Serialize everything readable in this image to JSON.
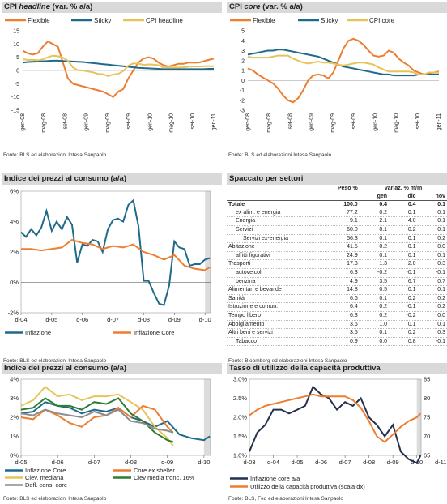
{
  "colors": {
    "orange": "#ED7D31",
    "blue": "#1F6A8B",
    "gold": "#E6C45A",
    "grey": "#8C8C8C",
    "green": "#2E7D32",
    "navy": "#25304F",
    "shade": "#DCDCDC",
    "titlebg": "#D9D9D9"
  },
  "panels": {
    "p1": {
      "title_pre": "CPI ",
      "title_em": "headline",
      "title_post": " (var. % a/a)",
      "source": "Fonte: BLS ed elaborazioni Intesa Sanpaolo"
    },
    "p2": {
      "title_pre": "CPI ",
      "title_em": "core",
      "title_post": " (var. % a/a)",
      "source": "Fonte: BLS ed elaborazioni Intesa Sanpaolo"
    },
    "p3": {
      "title": "Indice dei prezzi al consumo (a/a)",
      "source": "Fonte: BLS ed elaborazioni Intesa Sanpaolo"
    },
    "p4": {
      "title": "Spaccato per settori",
      "source": "Fonte: Bloomberg ed elaborazioni Intesa Sanpaolo"
    },
    "p5": {
      "title": "Indice dei prezzi al consumo (a/a)",
      "source": "Fonte: BLS ed elaborazioni Intesa Sanpaolo"
    },
    "p6": {
      "title": "Tasso di utilizzo della capacità produttiva",
      "source": "Fonte: BLS, Fed ed elaborazioni Intesa Sanpaolo"
    }
  },
  "table": {
    "headers": {
      "peso": "Peso %",
      "variaz": "Variaz. % m/m",
      "gen": "gen",
      "dic": "dic",
      "nov": "nov"
    },
    "rows": [
      {
        "label": "Totale",
        "peso": "100.0",
        "gen": "0.4",
        "dic": "0.4",
        "nov": "0.1",
        "indent": 0,
        "bold": true
      },
      {
        "label": "ex alim. e energia",
        "peso": "77.2",
        "gen": "0.2",
        "dic": "0.1",
        "nov": "0.1",
        "indent": 1
      },
      {
        "label": "Energia",
        "peso": "9.1",
        "gen": "2.1",
        "dic": "4.0",
        "nov": "0.1",
        "indent": 1
      },
      {
        "label": "Servizi",
        "peso": "60.0",
        "gen": "0.1",
        "dic": "0.2",
        "nov": "0.1",
        "indent": 1
      },
      {
        "label": "Servizi ex-energia",
        "peso": "56.3",
        "gen": "0.1",
        "dic": "0.1",
        "nov": "0.2",
        "indent": 2
      },
      {
        "label": "Abitazione",
        "peso": "41.5",
        "gen": "0.2",
        "dic": "-0.1",
        "nov": "0.0",
        "indent": 0
      },
      {
        "label": "affitti figurativi",
        "peso": "24.9",
        "gen": "0.1",
        "dic": "0.1",
        "nov": "0.1",
        "indent": 1
      },
      {
        "label": "Trasporti",
        "peso": "17.3",
        "gen": "1.3",
        "dic": "2.0",
        "nov": "0.3",
        "indent": 0
      },
      {
        "label": "autoveicoli",
        "peso": "6.3",
        "gen": "-0.2",
        "dic": "-0.1",
        "nov": "-0.1",
        "indent": 1
      },
      {
        "label": "benzina",
        "peso": "4.9",
        "gen": "3.5",
        "dic": "6.7",
        "nov": "0.7",
        "indent": 1
      },
      {
        "label": "Alimentari e bevande",
        "peso": "14.8",
        "gen": "0.5",
        "dic": "0.1",
        "nov": "0.1",
        "indent": 0
      },
      {
        "label": "Sanità",
        "peso": "6.6",
        "gen": "0.1",
        "dic": "0.2",
        "nov": "0.2",
        "indent": 0
      },
      {
        "label": "Istruzione e comun.",
        "peso": "6.4",
        "gen": "0.2",
        "dic": "-0.1",
        "nov": "0.2",
        "indent": 0
      },
      {
        "label": "Tempo libero",
        "peso": "6.3",
        "gen": "0.2",
        "dic": "-0.2",
        "nov": "0.0",
        "indent": 0
      },
      {
        "label": "Abbigliamento",
        "peso": "3.6",
        "gen": "1.0",
        "dic": "0.1",
        "nov": "0.1",
        "indent": 0
      },
      {
        "label": "Altri beni e servizi",
        "peso": "3.5",
        "gen": "0.1",
        "dic": "0.2",
        "nov": "0.3",
        "indent": 0
      },
      {
        "label": "Tabacco",
        "peso": "0.9",
        "gen": "0.0",
        "dic": "0.8",
        "nov": "-0.1",
        "indent": 1
      }
    ]
  },
  "chart_data": [
    {
      "id": "p1",
      "type": "line",
      "ylim": [
        -15,
        15
      ],
      "yticks": [
        -15,
        -10,
        -5,
        0,
        5,
        10,
        15
      ],
      "x_labels": [
        "gen-08",
        "mag-08",
        "set-08",
        "gen-09",
        "mag-09",
        "set-09",
        "gen-10",
        "mag-10",
        "set-10",
        "gen-11"
      ],
      "legend_position": "top",
      "series": [
        {
          "name": "Flexible",
          "color": "orange",
          "values": [
            7.5,
            6.5,
            6,
            6.5,
            9,
            11,
            10,
            9,
            3,
            -3,
            -5,
            -5.5,
            -6,
            -6.5,
            -7,
            -7.5,
            -8,
            -9,
            -10,
            -8,
            -7,
            -3,
            0,
            3,
            4.5,
            5,
            4.5,
            3,
            2,
            1.5,
            2,
            2.5,
            2.5,
            3,
            3,
            3,
            3.5,
            4,
            4.5
          ]
        },
        {
          "name": "Sticky",
          "color": "blue",
          "values": [
            3,
            3.2,
            3.3,
            3.4,
            3.5,
            3.6,
            3.7,
            3.7,
            3.6,
            3.5,
            3.4,
            3.3,
            3.2,
            3,
            2.8,
            2.6,
            2.4,
            2.2,
            2,
            1.8,
            1.6,
            1.4,
            1.2,
            1,
            0.9,
            0.8,
            0.7,
            0.6,
            0.5,
            0.5,
            0.5,
            0.5,
            0.5,
            0.5,
            0.5,
            0.5,
            0.5,
            0.6,
            0.6
          ]
        },
        {
          "name": "CPI headline",
          "color": "gold",
          "values": [
            4.3,
            4,
            4,
            3.9,
            4.2,
            5,
            5.6,
            5.4,
            4.9,
            3.7,
            1.1,
            0.1,
            0,
            -0.4,
            -0.7,
            -1.3,
            -1.4,
            -2.1,
            -1.5,
            -1.3,
            -0.2,
            1.8,
            2.7,
            2.6,
            2.1,
            2.3,
            2.2,
            2,
            1.1,
            1.2,
            1.1,
            1.1,
            1.2,
            1.4,
            1.5,
            1.5,
            1.6,
            1.6,
            1.6
          ]
        }
      ]
    },
    {
      "id": "p2",
      "type": "line",
      "ylim": [
        -3,
        5
      ],
      "yticks": [
        -3,
        -2,
        -1,
        0,
        1,
        2,
        3,
        4,
        5
      ],
      "x_labels": [
        "gen-08",
        "mag-08",
        "set-08",
        "gen-09",
        "mag-09",
        "set-09",
        "gen-10",
        "mag-10",
        "set-10",
        "gen-11"
      ],
      "legend_position": "top",
      "series": [
        {
          "name": "Flexible",
          "color": "orange",
          "values": [
            1.2,
            1,
            0.6,
            0.3,
            0,
            -0.3,
            -0.8,
            -1.5,
            -2,
            -2.2,
            -1.8,
            -1,
            0,
            0.5,
            0.6,
            0.5,
            0.2,
            0.8,
            2,
            3.2,
            4,
            4.2,
            4,
            3.6,
            3,
            2.5,
            2.4,
            2.5,
            3,
            2.8,
            2.2,
            1.8,
            1.5,
            1,
            0.8,
            0.6,
            0.7,
            0.8,
            0.9
          ]
        },
        {
          "name": "Sticky",
          "color": "blue",
          "values": [
            2.6,
            2.7,
            2.8,
            2.9,
            3,
            3,
            3.1,
            3.1,
            3,
            2.9,
            2.8,
            2.7,
            2.6,
            2.5,
            2.4,
            2.2,
            2,
            1.8,
            1.6,
            1.4,
            1.3,
            1.2,
            1.1,
            1,
            0.9,
            0.8,
            0.7,
            0.6,
            0.6,
            0.5,
            0.5,
            0.5,
            0.5,
            0.5,
            0.6,
            0.6,
            0.6,
            0.6,
            0.6
          ]
        },
        {
          "name": "CPI core",
          "color": "gold",
          "values": [
            2.4,
            2.3,
            2.3,
            2.3,
            2.3,
            2.4,
            2.5,
            2.5,
            2.5,
            2.2,
            2,
            1.8,
            1.7,
            1.8,
            1.9,
            1.8,
            1.8,
            1.7,
            1.6,
            1.5,
            1.6,
            1.7,
            1.8,
            1.8,
            1.7,
            1.6,
            1.3,
            1.1,
            0.9,
            0.9,
            0.9,
            0.9,
            0.9,
            0.8,
            0.6,
            0.6,
            0.8,
            0.8,
            0.8
          ]
        }
      ]
    },
    {
      "id": "p3",
      "type": "line",
      "ylim": [
        -2,
        6
      ],
      "yticks": [
        "-2%",
        "0%",
        "2%",
        "4%",
        "6%"
      ],
      "ytick_values": [
        -2,
        0,
        2,
        4,
        6
      ],
      "x_labels": [
        "d-04",
        "d-05",
        "d-06",
        "d-07",
        "d-08",
        "d-09",
        "d-10",
        "d-11"
      ],
      "x_range": [
        2004.92,
        2011.1
      ],
      "shaded_from": 2010.92,
      "legend_position": "bottom",
      "series": [
        {
          "name": "Inflazione",
          "color": "blue",
          "x": [
            2004.92,
            2005.08,
            2005.25,
            2005.42,
            2005.58,
            2005.75,
            2005.92,
            2006.08,
            2006.25,
            2006.42,
            2006.58,
            2006.75,
            2006.92,
            2007.08,
            2007.25,
            2007.42,
            2007.58,
            2007.75,
            2007.92,
            2008.08,
            2008.25,
            2008.42,
            2008.58,
            2008.75,
            2008.92,
            2009.08,
            2009.25,
            2009.42,
            2009.58,
            2009.75,
            2009.92,
            2010.08,
            2010.25,
            2010.42,
            2010.58,
            2010.75,
            2010.92,
            2011.08
          ],
          "values": [
            3.3,
            3,
            3.5,
            3.1,
            3.6,
            4.7,
            3.4,
            4,
            3.5,
            4.3,
            3.8,
            1.3,
            2.5,
            2.4,
            2.8,
            2.7,
            2,
            3.5,
            4.1,
            4.2,
            4,
            5.1,
            5.4,
            3.7,
            0.1,
            0.1,
            -0.7,
            -1.4,
            -1.5,
            -0.2,
            2.7,
            2.3,
            2.2,
            1.1,
            1.2,
            1.2,
            1.5,
            1.6
          ]
        },
        {
          "name": "Inflazione Core",
          "color": "orange",
          "x": [
            2004.92,
            2005.25,
            2005.58,
            2005.92,
            2006.25,
            2006.58,
            2006.92,
            2007.25,
            2007.58,
            2007.92,
            2008.25,
            2008.58,
            2008.92,
            2009.25,
            2009.58,
            2009.92,
            2010.25,
            2010.58,
            2010.92,
            2011.08
          ],
          "values": [
            2.2,
            2.2,
            2.1,
            2.2,
            2.3,
            2.8,
            2.6,
            2.5,
            2.2,
            2.4,
            2.3,
            2.5,
            2,
            1.8,
            1.5,
            1.8,
            1.1,
            0.9,
            0.8,
            1
          ]
        }
      ]
    },
    {
      "id": "p5",
      "type": "line",
      "ylim": [
        0,
        4
      ],
      "yticks": [
        "0%",
        "1%",
        "2%",
        "3%",
        "4%"
      ],
      "ytick_values": [
        0,
        1,
        2,
        3,
        4
      ],
      "x_labels": [
        "d-05",
        "d-06",
        "d-07",
        "d-08",
        "d-09",
        "d-10",
        "d-11"
      ],
      "x_range": [
        2005.92,
        2011.1
      ],
      "shaded_from": 2010.92,
      "legend_position": "bottom",
      "series": [
        {
          "name": "Inflazione Core",
          "color": "blue",
          "x": [
            2005.92,
            2006.25,
            2006.58,
            2006.92,
            2007.25,
            2007.58,
            2007.92,
            2008.25,
            2008.58,
            2008.92,
            2009.25,
            2009.58,
            2009.92,
            2010.25,
            2010.58,
            2010.92,
            2011.08
          ],
          "values": [
            2.2,
            2.3,
            2.8,
            2.6,
            2.5,
            2.2,
            2.4,
            2.3,
            2.5,
            2,
            1.8,
            1.5,
            1.8,
            1.1,
            0.9,
            0.8,
            1
          ]
        },
        {
          "name": "Core ex shelter",
          "color": "orange",
          "x": [
            2005.92,
            2006.25,
            2006.58,
            2006.92,
            2007.25,
            2007.58,
            2007.92,
            2008.25,
            2008.58,
            2008.92,
            2009.25,
            2009.58,
            2009.92,
            2010.08
          ],
          "values": [
            2,
            1.9,
            2.4,
            2.1,
            1.7,
            1.5,
            2,
            2.1,
            2.5,
            2,
            2.6,
            2.4,
            1.5,
            1.2
          ]
        },
        {
          "name": "Clev. mediana",
          "color": "gold",
          "x": [
            2005.92,
            2006.25,
            2006.58,
            2006.92,
            2007.25,
            2007.58,
            2007.92,
            2008.25,
            2008.58,
            2008.92,
            2009.25,
            2009.58,
            2009.92,
            2010.08
          ],
          "values": [
            2.6,
            2.9,
            3.6,
            3.1,
            3.2,
            2.9,
            3.1,
            3.1,
            3.2,
            2.8,
            2.4,
            1.5,
            0.9,
            0.5
          ]
        },
        {
          "name": "Clev media tronc. 16%",
          "color": "green",
          "x": [
            2005.92,
            2006.25,
            2006.58,
            2006.92,
            2007.25,
            2007.58,
            2007.92,
            2008.25,
            2008.58,
            2008.92,
            2009.25,
            2009.58,
            2009.92,
            2010.08
          ],
          "values": [
            2.4,
            2.5,
            3,
            2.6,
            2.6,
            2.4,
            2.8,
            2.7,
            3,
            2.2,
            1.8,
            1.2,
            0.8,
            0.7
          ]
        },
        {
          "name": "Defl. cons. core",
          "color": "grey",
          "x": [
            2005.92,
            2006.25,
            2006.58,
            2006.92,
            2007.25,
            2007.58,
            2007.92,
            2008.25,
            2008.58,
            2008.92,
            2009.25,
            2009.58,
            2009.92,
            2010.08
          ],
          "values": [
            2.2,
            2.1,
            2.4,
            2.2,
            2.1,
            2,
            2.3,
            2.1,
            2.4,
            1.8,
            1.7,
            1.4,
            1.3,
            1.2
          ]
        }
      ]
    },
    {
      "id": "p6",
      "type": "line",
      "ylim": [
        1,
        3
      ],
      "yticks": [
        "1.0%",
        "1.5%",
        "2.0%",
        "2.5%",
        "3.0%"
      ],
      "ytick_values": [
        1,
        1.5,
        2,
        2.5,
        3
      ],
      "y2lim": [
        65,
        85
      ],
      "y2ticks": [
        65,
        70,
        75,
        80,
        85
      ],
      "x_labels": [
        "d-03",
        "d-04",
        "d-05",
        "d-06",
        "d-07",
        "d-08",
        "d-09",
        "d-10",
        "d-11"
      ],
      "x_range": [
        2003.92,
        2011.1
      ],
      "shaded_from": 2010.92,
      "legend_position": "bottom",
      "series": [
        {
          "name": "Inflazione core a/a",
          "color": "navy",
          "axis": "left",
          "x": [
            2003.92,
            2004.25,
            2004.58,
            2004.92,
            2005.25,
            2005.58,
            2005.92,
            2006.25,
            2006.58,
            2006.92,
            2007.25,
            2007.58,
            2007.92,
            2008.25,
            2008.58,
            2008.92,
            2009.25,
            2009.58,
            2009.92,
            2010.25,
            2010.58,
            2010.92,
            2011.08
          ],
          "values": [
            1.1,
            1.6,
            1.8,
            2.2,
            2.2,
            2.1,
            2.2,
            2.3,
            2.8,
            2.6,
            2.5,
            2.2,
            2.4,
            2.3,
            2.5,
            2,
            1.8,
            1.5,
            1.8,
            1.1,
            0.9,
            0.8,
            1
          ]
        },
        {
          "name": "Utilizzo della capacità produttiva (scala dx)",
          "color": "orange",
          "axis": "right",
          "x": [
            2003.92,
            2004.25,
            2004.58,
            2004.92,
            2005.25,
            2005.58,
            2005.92,
            2006.25,
            2006.58,
            2006.92,
            2007.25,
            2007.58,
            2007.92,
            2008.25,
            2008.58,
            2008.92,
            2009.25,
            2009.58,
            2009.92,
            2010.25,
            2010.58,
            2010.92,
            2011.08
          ],
          "values": [
            75.5,
            77,
            78,
            78.5,
            79,
            79.5,
            80,
            80.5,
            81,
            80.5,
            80.5,
            80.5,
            80.5,
            79.5,
            77.5,
            74,
            70,
            68.5,
            70.5,
            72.5,
            74,
            75,
            76
          ]
        }
      ]
    }
  ]
}
